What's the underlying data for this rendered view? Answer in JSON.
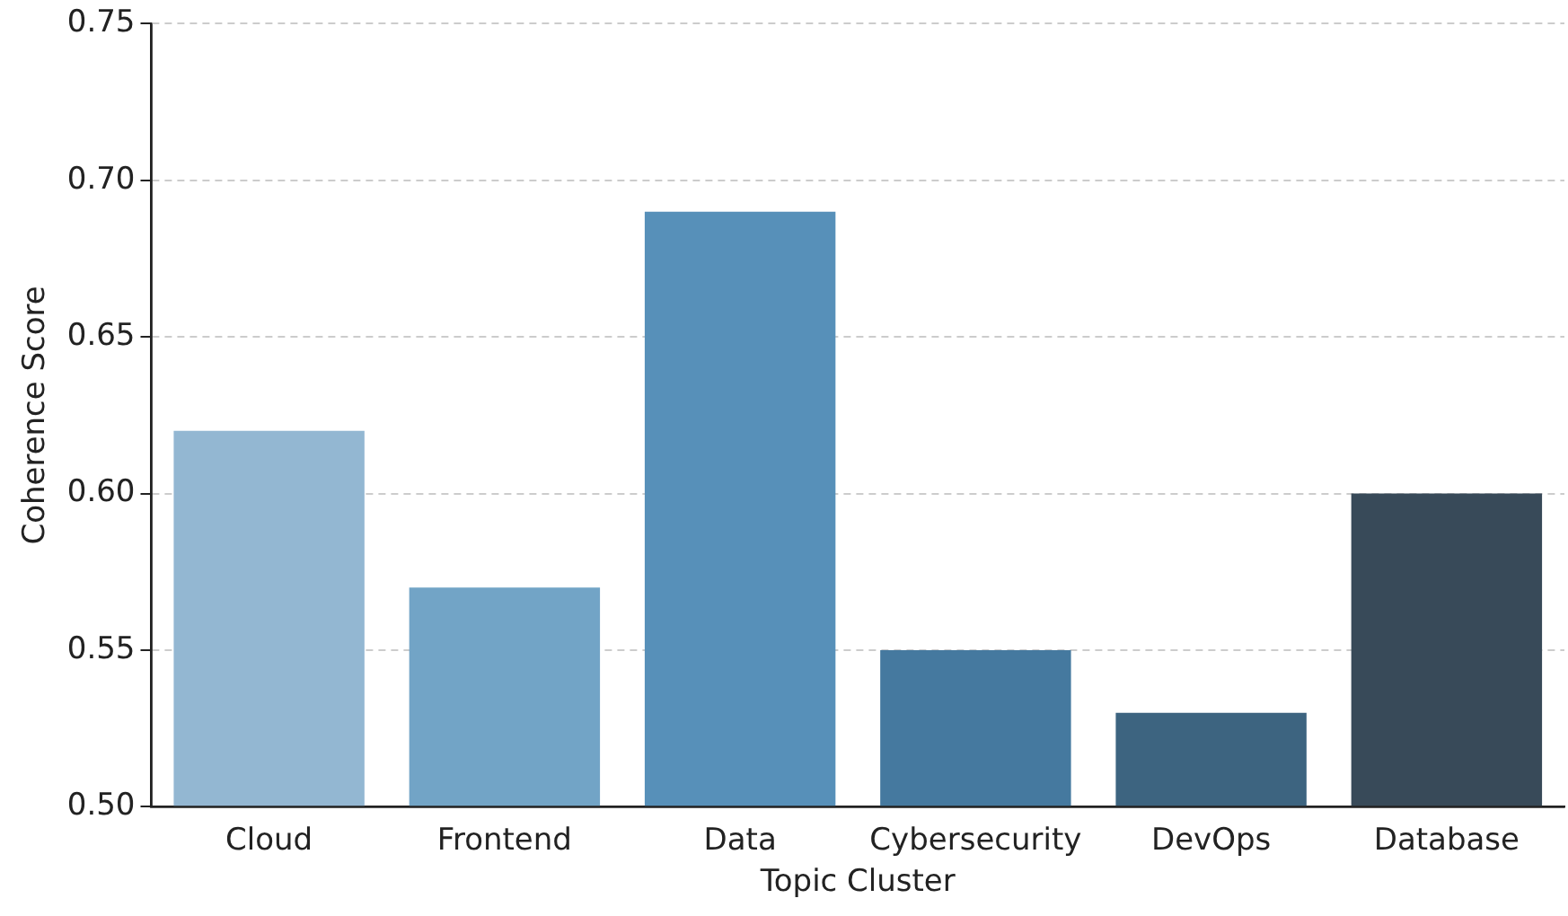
{
  "chart_data": {
    "type": "bar",
    "xlabel": "Topic Cluster",
    "ylabel": "Coherence Score",
    "categories": [
      "Cloud",
      "Frontend",
      "Data",
      "Cybersecurity",
      "DevOps",
      "Database"
    ],
    "values": [
      0.62,
      0.57,
      0.69,
      0.55,
      0.53,
      0.6
    ],
    "colors": [
      "#93b7d2",
      "#72a4c6",
      "#5790b9",
      "#45799f",
      "#3d6480",
      "#384a59"
    ],
    "ylim": [
      0.5,
      0.75
    ],
    "yticks": [
      {
        "value": 0.5,
        "label": "0.50"
      },
      {
        "value": 0.55,
        "label": "0.55"
      },
      {
        "value": 0.6,
        "label": "0.60"
      },
      {
        "value": 0.65,
        "label": "0.65"
      },
      {
        "value": 0.7,
        "label": "0.70"
      },
      {
        "value": 0.75,
        "label": "0.75"
      }
    ],
    "grid": "y",
    "legend": false
  }
}
